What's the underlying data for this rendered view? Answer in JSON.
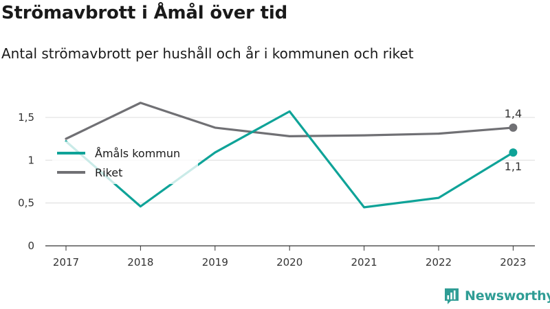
{
  "title": "Strömavbrott i Åmål över tid",
  "subtitle": "Antal strömavbrott per hushåll och år i kommunen och riket",
  "brand": "Newsworthy",
  "colors": {
    "amal": "#0fa398",
    "riket": "#707074"
  },
  "icons": {
    "brand_logo": "bar-chart-badge-icon"
  },
  "chart_data": {
    "type": "line",
    "x": [
      "2017",
      "2018",
      "2019",
      "2020",
      "2021",
      "2022",
      "2023"
    ],
    "y_ticks": [
      0,
      0.5,
      1,
      1.5
    ],
    "y_tick_labels": [
      "0",
      "0,5",
      "1",
      "1,5"
    ],
    "ylim": [
      0,
      1.75
    ],
    "grid": true,
    "legend_position": "top-left",
    "series": [
      {
        "name": "Åmåls kommun",
        "values": [
          1.22,
          0.46,
          1.09,
          1.57,
          0.45,
          0.56,
          1.09
        ],
        "end_label": "1,1"
      },
      {
        "name": "Riket",
        "values": [
          1.25,
          1.67,
          1.38,
          1.28,
          1.29,
          1.31,
          1.38
        ],
        "end_label": "1,4"
      }
    ]
  }
}
